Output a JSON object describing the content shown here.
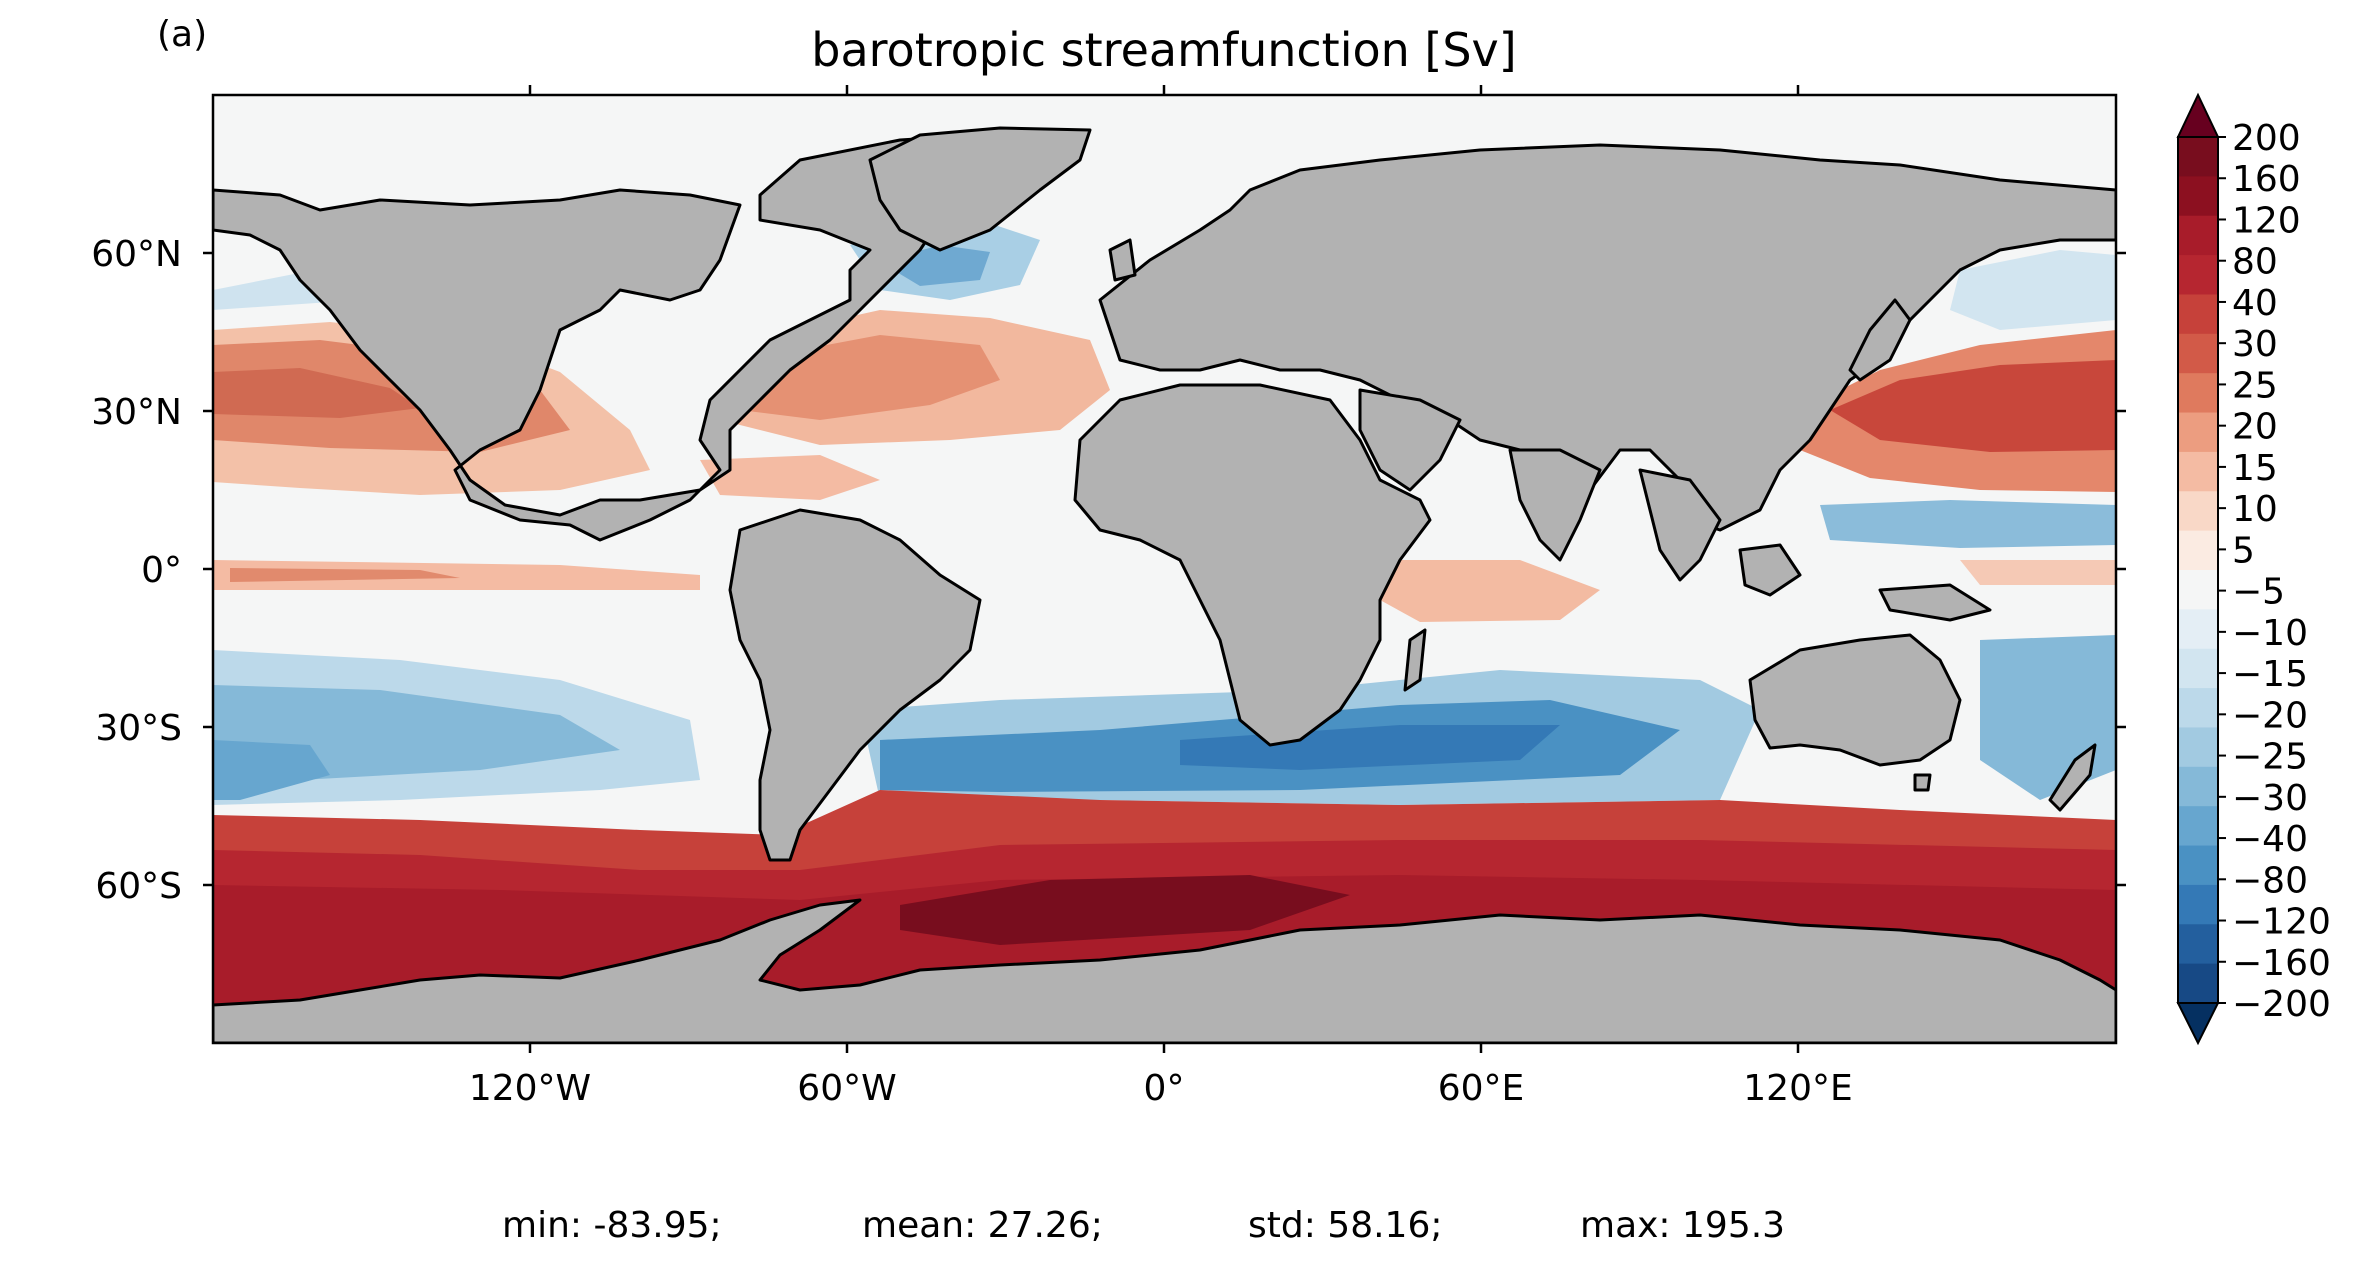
{
  "panel_label": "(a)",
  "title": "barotropic streamfunction [Sv]",
  "lat_ticks": [
    "60°N",
    "30°N",
    "0°",
    "30°S",
    "60°S"
  ],
  "lon_ticks": [
    "120°W",
    "60°W",
    "0°",
    "60°E",
    "120°E"
  ],
  "colorbar": {
    "extend": "both",
    "tick_labels": [
      "200",
      "160",
      "120",
      "80",
      "40",
      "30",
      "25",
      "20",
      "15",
      "10",
      "5",
      "−5",
      "−10",
      "−15",
      "−20",
      "−25",
      "−30",
      "−40",
      "−80",
      "−120",
      "−160",
      "−200"
    ],
    "colors": [
      "#780d1e",
      "#8c1020",
      "#a81c2a",
      "#b62630",
      "#c6413a",
      "#d25a48",
      "#df7a5e",
      "#ec9d80",
      "#f4bba3",
      "#f9d8c7",
      "#fbebe2",
      "#f5f6f6",
      "#e4eef5",
      "#d2e5f0",
      "#bcd9ea",
      "#a2cae1",
      "#85b9d8",
      "#67a6cf",
      "#4a91c3",
      "#3479b6",
      "#235f9e",
      "#174985"
    ],
    "over_color": "#67001f",
    "under_color": "#053061"
  },
  "map": {
    "ocean_background": "#f5f6f6",
    "land_color": "#b2b2b2",
    "coastline_color": "#000000"
  },
  "stats": {
    "min": "min: -83.95;",
    "mean": "mean: 27.26;",
    "std": "std: 58.16;",
    "max": "max: 195.3"
  }
}
